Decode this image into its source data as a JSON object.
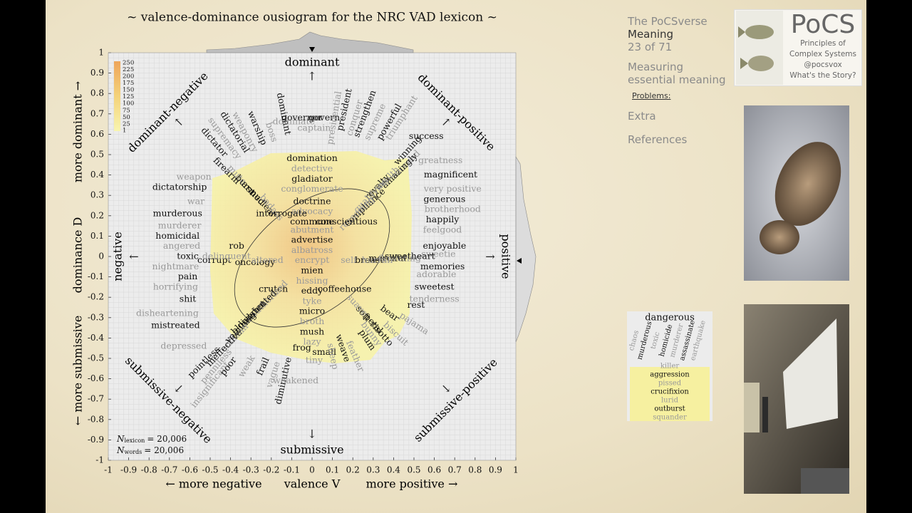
{
  "chart_data": {
    "type": "ousiogram",
    "title": "~ valence-dominance ousiogram for the NRC VAD lexicon ~",
    "x_label": {
      "left": "← more negative",
      "center": "valence V",
      "right": "more positive →"
    },
    "y_label": {
      "bottom": "← more submissive",
      "center": "dominance D",
      "top": "more dominant →"
    },
    "poles": {
      "top": "dominant",
      "bottom": "submissive",
      "left": "negative",
      "right": "positive"
    },
    "corners": {
      "top_left": "dominant-negative",
      "top_right": "dominant-positive",
      "bottom_left": "submissive-negative",
      "bottom_right": "submissive-positive"
    },
    "xlim": [
      -1,
      1
    ],
    "ylim": [
      -1,
      1
    ],
    "xticks": [
      -1,
      -0.9,
      -0.8,
      -0.7,
      -0.6,
      -0.5,
      -0.4,
      -0.3,
      -0.2,
      -0.1,
      0,
      0.1,
      0.2,
      0.3,
      0.4,
      0.5,
      0.6,
      0.7,
      0.8,
      0.9,
      1
    ],
    "yticks": [
      -1,
      -0.9,
      -0.8,
      -0.7,
      -0.6,
      -0.5,
      -0.4,
      -0.3,
      -0.2,
      -0.1,
      0,
      0.1,
      0.2,
      0.3,
      0.4,
      0.5,
      0.6,
      0.7,
      0.8,
      0.9,
      1
    ],
    "grid": true,
    "colorbar": {
      "lim": [
        1,
        250
      ],
      "ticks": [
        1,
        25,
        50,
        75,
        100,
        125,
        150,
        175,
        200,
        225,
        250
      ]
    },
    "counts": [
      {
        "symbol": "N",
        "subscript": "lexicon",
        "text": "= 20,006"
      },
      {
        "symbol": "N",
        "subscript": "words",
        "text": "= 20,006"
      }
    ],
    "words": [
      {
        "text": "domination",
        "v": 0,
        "d": 0.48,
        "gray": false
      },
      {
        "text": "detective",
        "v": 0,
        "d": 0.43,
        "gray": true
      },
      {
        "text": "gladiator",
        "v": 0,
        "d": 0.38,
        "gray": false
      },
      {
        "text": "conglomerate",
        "v": 0,
        "d": 0.33,
        "gray": true
      },
      {
        "text": "doctrine",
        "v": 0,
        "d": 0.27,
        "gray": false
      },
      {
        "text": "advocacy",
        "v": 0,
        "d": 0.22,
        "gray": true
      },
      {
        "text": "commune",
        "v": 0,
        "d": 0.17,
        "gray": false
      },
      {
        "text": "abutment",
        "v": 0,
        "d": 0.13,
        "gray": true
      },
      {
        "text": "advertise",
        "v": 0,
        "d": 0.08,
        "gray": false
      },
      {
        "text": "albatross",
        "v": 0,
        "d": 0.03,
        "gray": true
      },
      {
        "text": "encrypt",
        "v": 0,
        "d": -0.02,
        "gray": true
      },
      {
        "text": "mien",
        "v": 0,
        "d": -0.07,
        "gray": false
      },
      {
        "text": "hissing",
        "v": 0,
        "d": -0.12,
        "gray": true
      },
      {
        "text": "eddy",
        "v": 0,
        "d": -0.17,
        "gray": false
      },
      {
        "text": "tyke",
        "v": 0,
        "d": -0.22,
        "gray": true
      },
      {
        "text": "micro",
        "v": 0,
        "d": -0.27,
        "gray": false
      },
      {
        "text": "broth",
        "v": 0,
        "d": -0.32,
        "gray": true
      },
      {
        "text": "mush",
        "v": 0,
        "d": -0.37,
        "gray": false
      },
      {
        "text": "lazy",
        "v": 0,
        "d": -0.42,
        "gray": true
      },
      {
        "text": "magnificent",
        "v": 0.68,
        "d": 0.4,
        "gray": false
      },
      {
        "text": "very positive",
        "v": 0.69,
        "d": 0.33,
        "gray": true
      },
      {
        "text": "generous",
        "v": 0.65,
        "d": 0.28,
        "gray": false
      },
      {
        "text": "brotherhood",
        "v": 0.69,
        "d": 0.23,
        "gray": true
      },
      {
        "text": "happily",
        "v": 0.64,
        "d": 0.18,
        "gray": false
      },
      {
        "text": "feelgood",
        "v": 0.64,
        "d": 0.13,
        "gray": true
      },
      {
        "text": "enjoyable",
        "v": 0.65,
        "d": 0.05,
        "gray": false
      },
      {
        "text": "sweetie",
        "v": 0.62,
        "d": 0.01,
        "gray": true
      },
      {
        "text": "memories",
        "v": 0.64,
        "d": -0.05,
        "gray": false
      },
      {
        "text": "adorable",
        "v": 0.61,
        "d": -0.09,
        "gray": true
      },
      {
        "text": "sweetest",
        "v": 0.6,
        "d": -0.15,
        "gray": false
      },
      {
        "text": "tenderness",
        "v": 0.6,
        "d": -0.21,
        "gray": true
      },
      {
        "text": "rest",
        "v": 0.51,
        "d": -0.24,
        "gray": false
      },
      {
        "text": "pajama",
        "v": 0.5,
        "d": -0.33,
        "gray": true
      },
      {
        "text": "weapon",
        "v": -0.58,
        "d": 0.39,
        "gray": true
      },
      {
        "text": "dictatorship",
        "v": -0.65,
        "d": 0.34,
        "gray": false
      },
      {
        "text": "war",
        "v": -0.57,
        "d": 0.27,
        "gray": true
      },
      {
        "text": "murderous",
        "v": -0.66,
        "d": 0.21,
        "gray": false
      },
      {
        "text": "murderer",
        "v": -0.65,
        "d": 0.15,
        "gray": true
      },
      {
        "text": "homicidal",
        "v": -0.66,
        "d": 0.1,
        "gray": false
      },
      {
        "text": "angered",
        "v": -0.64,
        "d": 0.05,
        "gray": true
      },
      {
        "text": "toxic",
        "v": -0.61,
        "d": 0,
        "gray": false
      },
      {
        "text": "nightmare",
        "v": -0.67,
        "d": -0.05,
        "gray": true
      },
      {
        "text": "pain",
        "v": -0.61,
        "d": -0.1,
        "gray": false
      },
      {
        "text": "horrifying",
        "v": -0.67,
        "d": -0.15,
        "gray": true
      },
      {
        "text": "shit",
        "v": -0.61,
        "d": -0.21,
        "gray": false
      },
      {
        "text": "disheartening",
        "v": -0.71,
        "d": -0.28,
        "gray": true
      },
      {
        "text": "mistreated",
        "v": -0.67,
        "d": -0.34,
        "gray": false
      },
      {
        "text": "depressed",
        "v": -0.63,
        "d": -0.44,
        "gray": true
      },
      {
        "text": "dictator",
        "v": -0.48,
        "d": 0.56,
        "gray": false
      },
      {
        "text": "supremacy",
        "v": -0.43,
        "d": 0.58,
        "gray": true
      },
      {
        "text": "dictatorial",
        "v": -0.38,
        "d": 0.61,
        "gray": false
      },
      {
        "text": "weaponry",
        "v": -0.33,
        "d": 0.61,
        "gray": true
      },
      {
        "text": "warship",
        "v": -0.27,
        "d": 0.63,
        "gray": false
      },
      {
        "text": "boss",
        "v": -0.2,
        "d": 0.61,
        "gray": true
      },
      {
        "text": "dominant",
        "v": -0.14,
        "d": 0.7,
        "gray": false
      },
      {
        "text": "dominate",
        "v": -0.09,
        "d": 0.66,
        "gray": true
      },
      {
        "text": "governor",
        "v": -0.05,
        "d": 0.68,
        "gray": false
      },
      {
        "text": "captain",
        "v": 0.01,
        "d": 0.63,
        "gray": true
      },
      {
        "text": "govern",
        "v": 0.06,
        "d": 0.68,
        "gray": false
      },
      {
        "text": "presidential",
        "v": 0.11,
        "d": 0.68,
        "gray": true
      },
      {
        "text": "president",
        "v": 0.16,
        "d": 0.72,
        "gray": false
      },
      {
        "text": "conquer",
        "v": 0.21,
        "d": 0.68,
        "gray": true
      },
      {
        "text": "strengthen",
        "v": 0.26,
        "d": 0.7,
        "gray": false
      },
      {
        "text": "supreme",
        "v": 0.31,
        "d": 0.66,
        "gray": true
      },
      {
        "text": "powerful",
        "v": 0.38,
        "d": 0.66,
        "gray": false
      },
      {
        "text": "triumphant",
        "v": 0.44,
        "d": 0.68,
        "gray": true
      },
      {
        "text": "success",
        "v": 0.56,
        "d": 0.59,
        "gray": false
      },
      {
        "text": "winning",
        "v": 0.47,
        "d": 0.52,
        "gray": false
      },
      {
        "text": "succeed",
        "v": 0.46,
        "d": 0.45,
        "gray": true
      },
      {
        "text": "greatness",
        "v": 0.63,
        "d": 0.47,
        "gray": true
      },
      {
        "text": "firearm",
        "v": -0.42,
        "d": 0.42,
        "gray": false
      },
      {
        "text": "mute",
        "v": -0.37,
        "d": 0.4,
        "gray": true
      },
      {
        "text": "burst",
        "v": -0.33,
        "d": 0.35,
        "gray": false
      },
      {
        "text": "armed",
        "v": -0.29,
        "d": 0.31,
        "gray": false
      },
      {
        "text": "nuclear",
        "v": -0.24,
        "d": 0.26,
        "gray": false
      },
      {
        "text": "badass",
        "v": -0.2,
        "d": 0.24,
        "gray": true
      },
      {
        "text": "interrogate",
        "v": -0.15,
        "d": 0.21,
        "gray": false
      },
      {
        "text": "amazingly",
        "v": 0.43,
        "d": 0.42,
        "gray": false
      },
      {
        "text": "wealth",
        "v": 0.37,
        "d": 0.38,
        "gray": true
      },
      {
        "text": "royalty",
        "v": 0.32,
        "d": 0.34,
        "gray": false
      },
      {
        "text": "qualifying",
        "v": 0.29,
        "d": 0.3,
        "gray": true
      },
      {
        "text": "compliance",
        "v": 0.26,
        "d": 0.24,
        "gray": false
      },
      {
        "text": "reasoning",
        "v": 0.22,
        "d": 0.21,
        "gray": true
      },
      {
        "text": "conscientious",
        "v": 0.17,
        "d": 0.17,
        "gray": false
      },
      {
        "text": "corrupt",
        "v": -0.48,
        "d": -0.02,
        "gray": false
      },
      {
        "text": "delinquent",
        "v": -0.42,
        "d": 0,
        "gray": true
      },
      {
        "text": "rob",
        "v": -0.37,
        "d": 0.05,
        "gray": false
      },
      {
        "text": "oncology",
        "v": -0.28,
        "d": -0.03,
        "gray": false
      },
      {
        "text": "altered",
        "v": -0.22,
        "d": -0.02,
        "gray": true
      },
      {
        "text": "crutch",
        "v": -0.19,
        "d": -0.16,
        "gray": false
      },
      {
        "text": "unauthorized",
        "v": -0.23,
        "d": -0.23,
        "gray": true
      },
      {
        "text": "disoriented",
        "v": -0.27,
        "d": -0.26,
        "gray": false
      },
      {
        "text": "bloodshot",
        "v": -0.31,
        "d": -0.3,
        "gray": false
      },
      {
        "text": "vomiting",
        "v": -0.35,
        "d": -0.35,
        "gray": false
      },
      {
        "text": "unclean",
        "v": -0.38,
        "d": -0.4,
        "gray": true
      },
      {
        "text": "ineffective",
        "v": -0.43,
        "d": -0.45,
        "gray": false
      },
      {
        "text": "pointless",
        "v": -0.53,
        "d": -0.52,
        "gray": false
      },
      {
        "text": "penniless",
        "v": -0.47,
        "d": -0.54,
        "gray": true
      },
      {
        "text": "insignificant",
        "v": -0.5,
        "d": -0.63,
        "gray": true
      },
      {
        "text": "poor",
        "v": -0.41,
        "d": -0.54,
        "gray": false
      },
      {
        "text": "weak",
        "v": -0.32,
        "d": -0.54,
        "gray": true
      },
      {
        "text": "frail",
        "v": -0.24,
        "d": -0.54,
        "gray": false
      },
      {
        "text": "vague",
        "v": -0.19,
        "d": -0.58,
        "gray": true
      },
      {
        "text": "diminutive",
        "v": -0.14,
        "d": -0.61,
        "gray": false
      },
      {
        "text": "weakened",
        "v": -0.08,
        "d": -0.61,
        "gray": true
      },
      {
        "text": "frog",
        "v": -0.05,
        "d": -0.45,
        "gray": false
      },
      {
        "text": "tiny",
        "v": 0.01,
        "d": -0.51,
        "gray": true
      },
      {
        "text": "small",
        "v": 0.06,
        "d": -0.47,
        "gray": false
      },
      {
        "text": "sheep",
        "v": 0.1,
        "d": -0.49,
        "gray": true
      },
      {
        "text": "weave",
        "v": 0.15,
        "d": -0.45,
        "gray": false
      },
      {
        "text": "feather",
        "v": 0.21,
        "d": -0.49,
        "gray": true
      },
      {
        "text": "plum",
        "v": 0.27,
        "d": -0.41,
        "gray": false
      },
      {
        "text": "bunny",
        "v": 0.29,
        "d": -0.38,
        "gray": true
      },
      {
        "text": "petal",
        "v": 0.3,
        "d": -0.33,
        "gray": false
      },
      {
        "text": "soft",
        "v": 0.25,
        "d": -0.28,
        "gray": false
      },
      {
        "text": "suave",
        "v": 0.22,
        "d": -0.24,
        "gray": true
      },
      {
        "text": "coffeehouse",
        "v": 0.16,
        "d": -0.16,
        "gray": false
      },
      {
        "text": "bear",
        "v": 0.38,
        "d": -0.28,
        "gray": false
      },
      {
        "text": "risotto",
        "v": 0.34,
        "d": -0.38,
        "gray": false
      },
      {
        "text": "biscuit",
        "v": 0.41,
        "d": -0.38,
        "gray": true
      },
      {
        "text": "merciful",
        "v": 0.37,
        "d": -0.01,
        "gray": false
      },
      {
        "text": "flowering",
        "v": 0.43,
        "d": -0.01,
        "gray": true
      },
      {
        "text": "sweetheart",
        "v": 0.48,
        "d": 0,
        "gray": false
      },
      {
        "text": "self",
        "v": 0.18,
        "d": -0.02,
        "gray": true
      },
      {
        "text": "breast",
        "v": 0.28,
        "d": -0.02,
        "gray": false
      },
      {
        "text": "hurrah",
        "v": 0.32,
        "d": -0.02,
        "gray": true
      }
    ]
  },
  "sidebar": {
    "course": "The PoCSverse",
    "section": "Meaning",
    "page": "23 of 71",
    "topic": [
      "Measuring",
      "essential meaning"
    ],
    "subtopic": "Problems:",
    "links": [
      "Extra",
      "References"
    ]
  },
  "logo": {
    "title": "PoCS",
    "lines": [
      "Principles of",
      "Complex Systems",
      "@pocsvox",
      "What's the Story?"
    ]
  },
  "inset": {
    "header": "dangerous",
    "radial": [
      "chaos",
      "murderous",
      "toxic",
      "homicide",
      "murderer",
      "assassinate",
      "earthquake"
    ],
    "stack": [
      "killer",
      "aggression",
      "pissed",
      "crucifixion",
      "lurid",
      "outburst",
      "squander"
    ]
  }
}
